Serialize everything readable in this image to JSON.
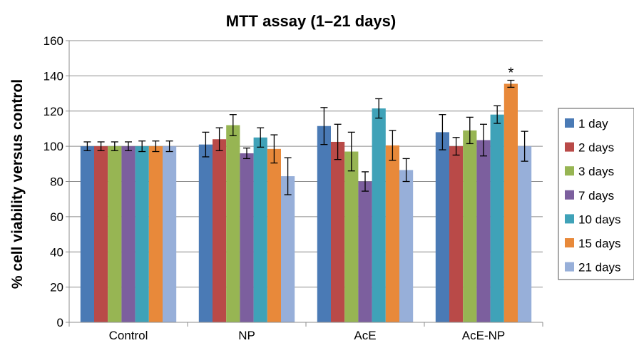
{
  "chart_data": {
    "type": "bar",
    "title": "MTT assay (1–21 days)",
    "xlabel": "",
    "ylabel": "% cell viability versus control",
    "ylim": [
      0,
      160
    ],
    "yticks": [
      0,
      20,
      40,
      60,
      80,
      100,
      120,
      140,
      160
    ],
    "grid": true,
    "legend_position": "right",
    "categories": [
      "Control",
      "NP",
      "AcE",
      "AcE-NP"
    ],
    "series": [
      {
        "name": "1 day",
        "color": "#4a7ab5",
        "values": [
          100,
          101,
          111.5,
          108
        ],
        "errors": [
          2.5,
          7,
          10.5,
          10
        ]
      },
      {
        "name": "2 days",
        "color": "#b94a48",
        "values": [
          100,
          104,
          102.5,
          100
        ],
        "errors": [
          2.5,
          6.5,
          10,
          5
        ]
      },
      {
        "name": "3 days",
        "color": "#97b553",
        "values": [
          100,
          112,
          97,
          109
        ],
        "errors": [
          2.5,
          6,
          11,
          7.5
        ]
      },
      {
        "name": "7 days",
        "color": "#7c5f9e",
        "values": [
          100,
          96,
          80,
          103.5
        ],
        "errors": [
          2.5,
          3,
          5.5,
          9
        ]
      },
      {
        "name": "10 days",
        "color": "#3fa2b8",
        "values": [
          100,
          105,
          121.5,
          118
        ],
        "errors": [
          3,
          5.5,
          5.5,
          5
        ]
      },
      {
        "name": "15 days",
        "color": "#e8893a",
        "values": [
          100,
          98.5,
          100.5,
          135.5
        ],
        "errors": [
          3,
          8,
          8.5,
          2
        ]
      },
      {
        "name": "21 days",
        "color": "#97afd9",
        "values": [
          100,
          83,
          86.5,
          100
        ],
        "errors": [
          3,
          10.5,
          6.5,
          8.5
        ]
      }
    ],
    "annotations": [
      {
        "text": "*",
        "category": "AcE-NP",
        "series": "15 days"
      }
    ]
  }
}
